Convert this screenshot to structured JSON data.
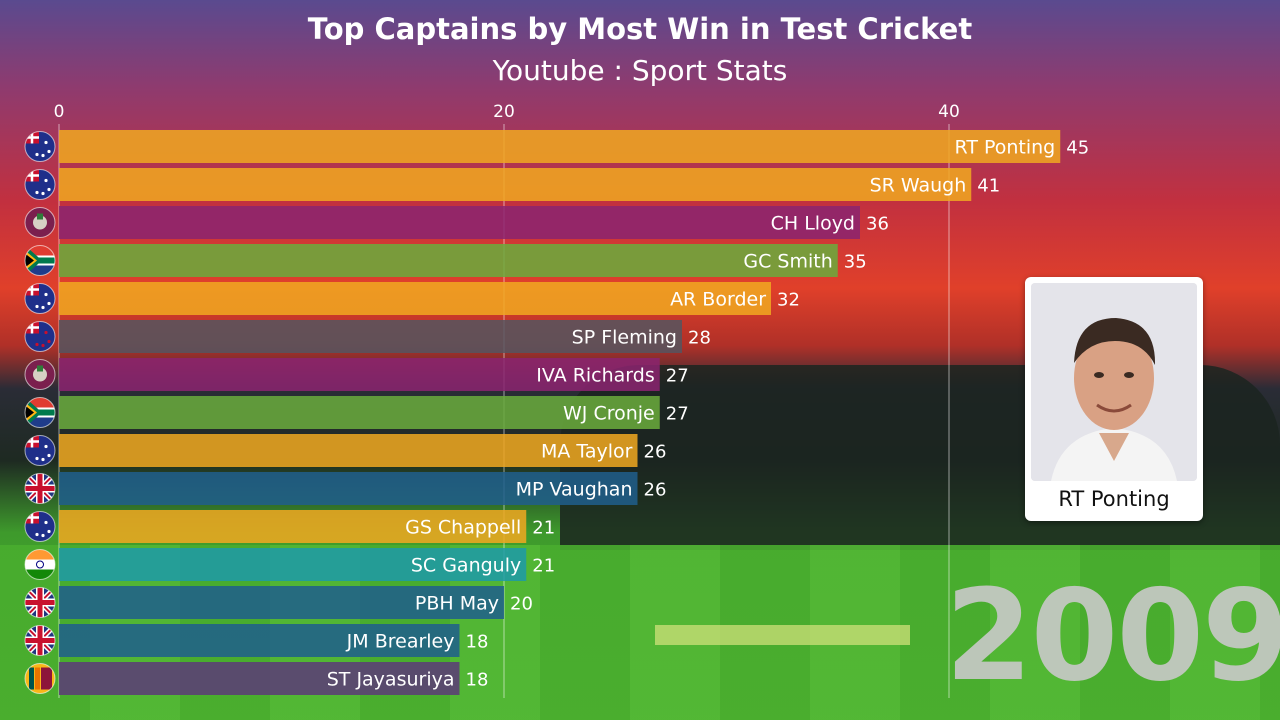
{
  "chart_data": {
    "type": "bar",
    "orientation": "horizontal",
    "title": "Top Captains by Most Win in Test Cricket",
    "subtitle": "Youtube : Sport Stats",
    "xlim": [
      0,
      45
    ],
    "xticks": [
      0,
      20,
      40
    ],
    "grid": true,
    "bars": [
      {
        "name": "RT Ponting",
        "value": 45,
        "country": "Australia",
        "color": "#f0a821"
      },
      {
        "name": "SR Waugh",
        "value": 41,
        "country": "Australia",
        "color": "#f0a821"
      },
      {
        "name": "CH Lloyd",
        "value": 36,
        "country": "West Indies",
        "color": "#8a2470"
      },
      {
        "name": "GC Smith",
        "value": 35,
        "country": "South Africa",
        "color": "#6aab3c"
      },
      {
        "name": "AR Border",
        "value": 32,
        "country": "Australia",
        "color": "#f0a821"
      },
      {
        "name": "SP Fleming",
        "value": 28,
        "country": "New Zealand",
        "color": "#55555f"
      },
      {
        "name": "IVA Richards",
        "value": 27,
        "country": "West Indies",
        "color": "#8a2470"
      },
      {
        "name": "WJ Cronje",
        "value": 27,
        "country": "South Africa",
        "color": "#6aab3c"
      },
      {
        "name": "MA Taylor",
        "value": 26,
        "country": "Australia",
        "color": "#f0a821"
      },
      {
        "name": "MP Vaughan",
        "value": 26,
        "country": "England",
        "color": "#1f5e8c"
      },
      {
        "name": "GS Chappell",
        "value": 21,
        "country": "Australia",
        "color": "#f0a821"
      },
      {
        "name": "SC Ganguly",
        "value": 21,
        "country": "India",
        "color": "#1e9aa8"
      },
      {
        "name": "PBH May",
        "value": 20,
        "country": "England",
        "color": "#1f5e8c"
      },
      {
        "name": "JM Brearley",
        "value": 18,
        "country": "England",
        "color": "#1f5e8c"
      },
      {
        "name": "ST Jayasuriya",
        "value": 18,
        "country": "Sri Lanka",
        "color": "#5c3a78"
      }
    ]
  },
  "leader_card": {
    "name": "RT Ponting"
  },
  "year": "2009"
}
